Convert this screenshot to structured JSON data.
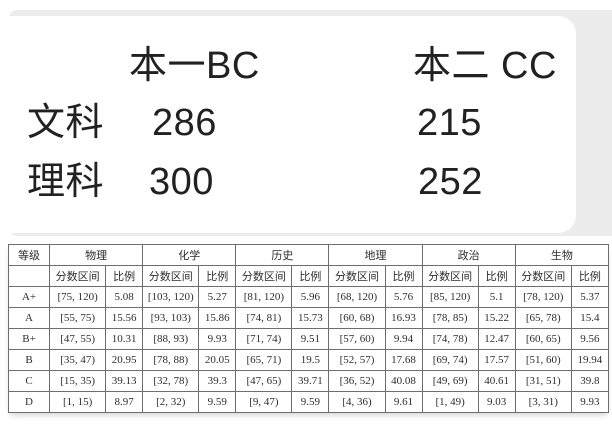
{
  "summary": {
    "headers": {
      "ben_yi": "本一BC",
      "ben_er": "本二 CC"
    },
    "rows": [
      {
        "label": "文科",
        "ben_yi": "286",
        "ben_er": "215"
      },
      {
        "label": "理科",
        "ben_yi": "300",
        "ben_er": "252"
      }
    ]
  },
  "table": {
    "grade_header": "等级",
    "interval_header": "分数区间",
    "ratio_header": "比例",
    "subjects": [
      "物理",
      "化学",
      "历史",
      "地理",
      "政治",
      "生物"
    ],
    "rows": [
      {
        "grade": "A+",
        "cells": [
          [
            "[75, 120)",
            "5.08"
          ],
          [
            "[103, 120)",
            "5.27"
          ],
          [
            "[81, 120)",
            "5.96"
          ],
          [
            "[68, 120)",
            "5.76"
          ],
          [
            "[85, 120)",
            "5.1"
          ],
          [
            "[78, 120)",
            "5.37"
          ]
        ]
      },
      {
        "grade": "A",
        "cells": [
          [
            "[55, 75)",
            "15.56"
          ],
          [
            "[93, 103)",
            "15.86"
          ],
          [
            "[74, 81)",
            "15.73"
          ],
          [
            "[60, 68)",
            "16.93"
          ],
          [
            "[78, 85)",
            "15.22"
          ],
          [
            "[65, 78)",
            "15.4"
          ]
        ]
      },
      {
        "grade": "B+",
        "cells": [
          [
            "[47, 55)",
            "10.31"
          ],
          [
            "[88, 93)",
            "9.93"
          ],
          [
            "[71, 74)",
            "9.51"
          ],
          [
            "[57, 60)",
            "9.94"
          ],
          [
            "[74, 78)",
            "12.47"
          ],
          [
            "[60, 65)",
            "9.56"
          ]
        ]
      },
      {
        "grade": "B",
        "cells": [
          [
            "[35, 47)",
            "20.95"
          ],
          [
            "[78, 88)",
            "20.05"
          ],
          [
            "[65, 71)",
            "19.5"
          ],
          [
            "[52, 57)",
            "17.68"
          ],
          [
            "[69, 74)",
            "17.57"
          ],
          [
            "[51, 60)",
            "19.94"
          ]
        ]
      },
      {
        "grade": "C",
        "cells": [
          [
            "[15, 35)",
            "39.13"
          ],
          [
            "[32, 78)",
            "39.3"
          ],
          [
            "[47, 65)",
            "39.71"
          ],
          [
            "[36, 52)",
            "40.08"
          ],
          [
            "[49, 69)",
            "40.61"
          ],
          [
            "[31, 51)",
            "39.8"
          ]
        ]
      },
      {
        "grade": "D",
        "cells": [
          [
            "[1, 15)",
            "8.97"
          ],
          [
            "[2, 32)",
            "9.59"
          ],
          [
            "[9, 47)",
            "9.59"
          ],
          [
            "[4, 36)",
            "9.61"
          ],
          [
            "[1, 49)",
            "9.03"
          ],
          [
            "[3, 31)",
            "9.93"
          ]
        ]
      }
    ]
  },
  "colors": {
    "panel_bg": "#ececec",
    "card_bg": "#ffffff",
    "text": "#212121",
    "table_border": "#6e6e6e"
  }
}
